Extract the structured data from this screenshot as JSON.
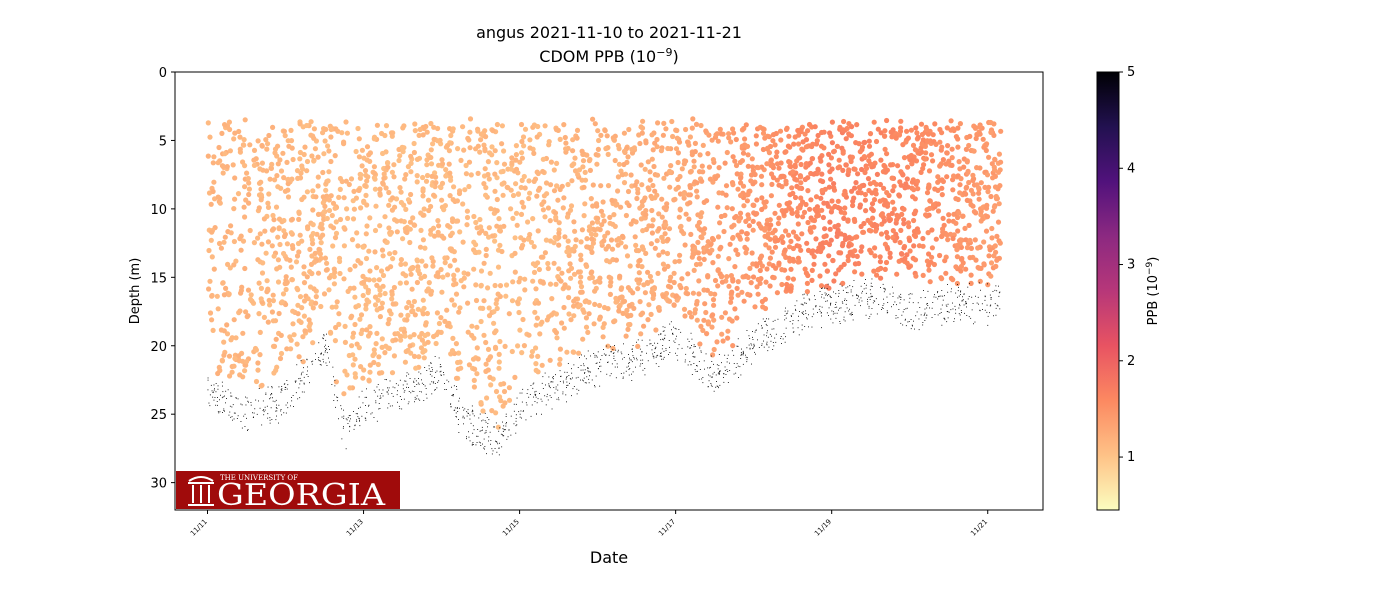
{
  "chart_data": {
    "type": "scatter",
    "title_line1": "angus 2021-11-10 to 2021-11-21",
    "title_line2_prefix": "CDOM PPB (10",
    "title_line2_exp": "−9",
    "title_line2_suffix": ")",
    "xlabel": "Date",
    "ylabel": "Depth (m)",
    "x_range": [
      "2021-11-10T14:00",
      "2021-11-21T17:00"
    ],
    "y_range": [
      32,
      0
    ],
    "y_inverted": true,
    "grid": false,
    "x_ticks": [
      {
        "date": "2021-11-11",
        "label": "11/11"
      },
      {
        "date": "2021-11-13",
        "label": "11/13"
      },
      {
        "date": "2021-11-15",
        "label": "11/15"
      },
      {
        "date": "2021-11-17",
        "label": "11/17"
      },
      {
        "date": "2021-11-19",
        "label": "11/19"
      },
      {
        "date": "2021-11-21",
        "label": "11/21"
      }
    ],
    "y_ticks": [
      0,
      5,
      10,
      15,
      20,
      25,
      30
    ],
    "colorbar": {
      "label_prefix": "PPB (10",
      "label_exp": "−9",
      "label_suffix": ")",
      "range": [
        0.45,
        5
      ],
      "ticks": [
        1,
        2,
        3,
        4,
        5
      ],
      "colormap": "magma_r",
      "stops": [
        "#fcfdbf",
        "#fec287",
        "#fc8961",
        "#e85362",
        "#b73779",
        "#8c2981",
        "#51127c",
        "#221150",
        "#000004"
      ]
    },
    "series": [
      {
        "kind": "scatter",
        "values_are": "CDOM PPB along glider profiles",
        "top_depth_m": 3.5,
        "cdom_ppb_by_date": [
          {
            "date": "2021-11-11",
            "ppb": 1.15
          },
          {
            "date": "2021-11-13",
            "ppb": 1.1
          },
          {
            "date": "2021-11-15",
            "ppb": 1.1
          },
          {
            "date": "2021-11-17",
            "ppb": 1.25
          },
          {
            "date": "2021-11-18",
            "ppb": 1.45
          },
          {
            "date": "2021-11-19",
            "ppb": 1.65
          },
          {
            "date": "2021-11-20",
            "ppb": 1.6
          },
          {
            "date": "2021-11-21",
            "ppb": 1.4
          }
        ]
      },
      {
        "kind": "bottom-depth-points",
        "color": "#000000",
        "depth_m_by_date": [
          {
            "date": "2021-11-11",
            "depth_m": 23
          },
          {
            "date": "2021-11-11T12:00",
            "depth_m": 24.5
          },
          {
            "date": "2021-11-12",
            "depth_m": 23.5
          },
          {
            "date": "2021-11-12T12:00",
            "depth_m": 19.5
          },
          {
            "date": "2021-11-12T18:00",
            "depth_m": 26
          },
          {
            "date": "2021-11-13",
            "depth_m": 24
          },
          {
            "date": "2021-11-13T12:00",
            "depth_m": 23
          },
          {
            "date": "2021-11-14",
            "depth_m": 21.5
          },
          {
            "date": "2021-11-14T06:00",
            "depth_m": 25
          },
          {
            "date": "2021-11-14T18:00",
            "depth_m": 26.5
          },
          {
            "date": "2021-11-15",
            "depth_m": 24
          },
          {
            "date": "2021-11-15T12:00",
            "depth_m": 22.5
          },
          {
            "date": "2021-11-16",
            "depth_m": 21
          },
          {
            "date": "2021-11-16T12:00",
            "depth_m": 20.5
          },
          {
            "date": "2021-11-17",
            "depth_m": 19
          },
          {
            "date": "2021-11-17T12:00",
            "depth_m": 22
          },
          {
            "date": "2021-11-18",
            "depth_m": 19.5
          },
          {
            "date": "2021-11-18T12:00",
            "depth_m": 17.5
          },
          {
            "date": "2021-11-19",
            "depth_m": 16.5
          },
          {
            "date": "2021-11-19T12:00",
            "depth_m": 16
          },
          {
            "date": "2021-11-20",
            "depth_m": 17
          },
          {
            "date": "2021-11-20T12:00",
            "depth_m": 16.5
          },
          {
            "date": "2021-11-21",
            "depth_m": 16.5
          },
          {
            "date": "2021-11-21T04:00",
            "depth_m": 16
          }
        ]
      }
    ]
  },
  "logo": {
    "line_small": "THE UNIVERSITY OF",
    "line_big": "GEORGIA",
    "bg_color": "#a00b0b"
  }
}
